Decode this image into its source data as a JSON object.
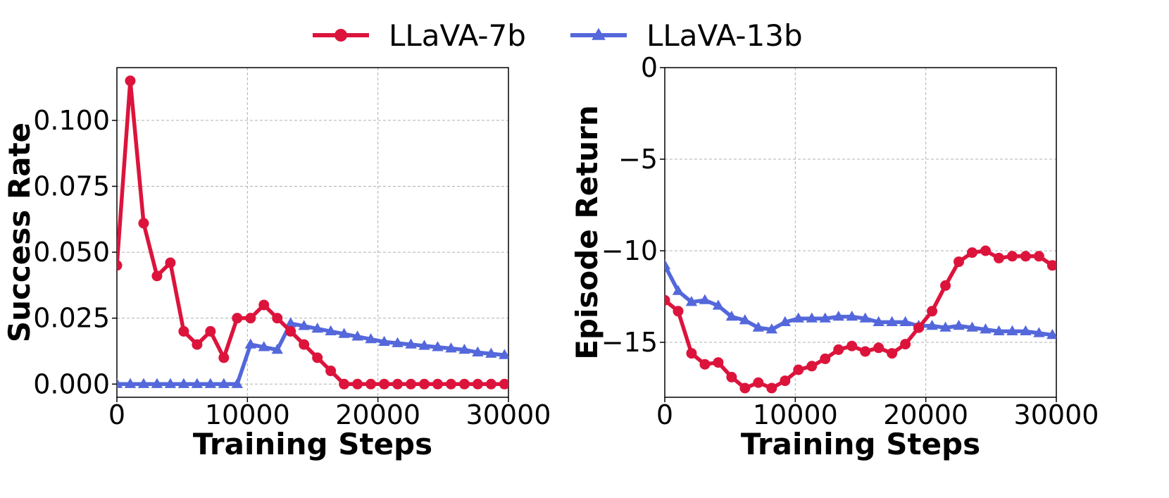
{
  "legend": {
    "entries": [
      {
        "label": "LLaVA-7b",
        "color": "#DC143C",
        "marker": "circle"
      },
      {
        "label": "LLaVA-13b",
        "color": "#5468DB",
        "marker": "triangle"
      }
    ],
    "placement": "top-center"
  },
  "chart_data": [
    {
      "type": "line",
      "title": "",
      "xlabel": "Training Steps",
      "ylabel": "Success Rate",
      "xlim": [
        0,
        30000
      ],
      "ylim": [
        -0.005,
        0.12
      ],
      "grid": true,
      "xticks": [
        0,
        10000,
        20000,
        30000
      ],
      "xtick_labels": [
        "0",
        "10000",
        "20000",
        "30000"
      ],
      "yticks": [
        0.0,
        0.025,
        0.05,
        0.075,
        0.1
      ],
      "ytick_labels": [
        "0.000",
        "0.025",
        "0.050",
        "0.075",
        "0.100"
      ],
      "x": [
        0,
        1024,
        2048,
        3072,
        4096,
        5120,
        6144,
        7168,
        8192,
        9216,
        10240,
        11264,
        12288,
        13312,
        14336,
        15360,
        16384,
        17408,
        18432,
        19456,
        20480,
        21504,
        22528,
        23552,
        24576,
        25600,
        26624,
        27648,
        28672,
        29696
      ],
      "series": [
        {
          "name": "LLaVA-7b",
          "color": "#DC143C",
          "marker": "circle",
          "values": [
            0.045,
            0.115,
            0.061,
            0.041,
            0.046,
            0.02,
            0.015,
            0.02,
            0.01,
            0.025,
            0.025,
            0.03,
            0.025,
            0.02,
            0.015,
            0.01,
            0.005,
            0.0,
            0.0,
            0.0,
            0.0,
            0.0,
            0.0,
            0.0,
            0.0,
            0.0,
            0.0,
            0.0,
            0.0,
            0.0
          ]
        },
        {
          "name": "LLaVA-13b",
          "color": "#5468DB",
          "marker": "triangle",
          "values": [
            0.0,
            0.0,
            0.0,
            0.0,
            0.0,
            0.0,
            0.0,
            0.0,
            0.0,
            0.0,
            0.015,
            0.014,
            0.013,
            0.023,
            0.022,
            0.021,
            0.02,
            0.019,
            0.018,
            0.017,
            0.016,
            0.0155,
            0.015,
            0.0145,
            0.014,
            0.0135,
            0.013,
            0.012,
            0.0115,
            0.011
          ]
        }
      ]
    },
    {
      "type": "line",
      "title": "",
      "xlabel": "Training Steps",
      "ylabel": "Episode Return",
      "xlim": [
        0,
        30000
      ],
      "ylim": [
        -18,
        0
      ],
      "grid": true,
      "xticks": [
        0,
        10000,
        20000,
        30000
      ],
      "xtick_labels": [
        "0",
        "10000",
        "20000",
        "30000"
      ],
      "yticks": [
        0,
        -5,
        -10,
        -15
      ],
      "ytick_labels": [
        "0",
        "−5",
        "−10",
        "−15"
      ],
      "x": [
        0,
        1024,
        2048,
        3072,
        4096,
        5120,
        6144,
        7168,
        8192,
        9216,
        10240,
        11264,
        12288,
        13312,
        14336,
        15360,
        16384,
        17408,
        18432,
        19456,
        20480,
        21504,
        22528,
        23552,
        24576,
        25600,
        26624,
        27648,
        28672,
        29696
      ],
      "series": [
        {
          "name": "LLaVA-7b",
          "color": "#DC143C",
          "marker": "circle",
          "values": [
            -12.7,
            -13.3,
            -15.6,
            -16.2,
            -16.1,
            -16.9,
            -17.5,
            -17.2,
            -17.5,
            -17.1,
            -16.5,
            -16.3,
            -15.9,
            -15.4,
            -15.2,
            -15.5,
            -15.3,
            -15.6,
            -15.1,
            -14.2,
            -13.3,
            -11.9,
            -10.6,
            -10.1,
            -10.0,
            -10.4,
            -10.3,
            -10.3,
            -10.3,
            -10.8
          ]
        },
        {
          "name": "LLaVA-13b",
          "color": "#5468DB",
          "marker": "triangle",
          "values": [
            -10.8,
            -12.2,
            -12.8,
            -12.7,
            -13.0,
            -13.6,
            -13.8,
            -14.2,
            -14.3,
            -13.9,
            -13.7,
            -13.7,
            -13.7,
            -13.6,
            -13.6,
            -13.7,
            -13.9,
            -13.9,
            -13.9,
            -14.1,
            -14.1,
            -14.2,
            -14.1,
            -14.2,
            -14.3,
            -14.4,
            -14.4,
            -14.4,
            -14.5,
            -14.6
          ]
        }
      ]
    }
  ]
}
